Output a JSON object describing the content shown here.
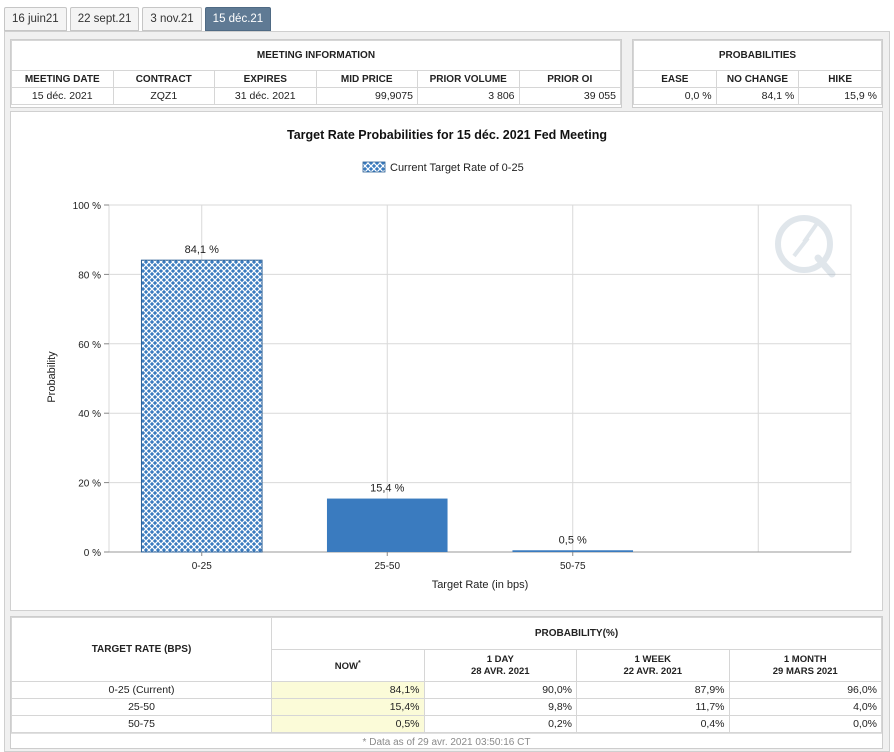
{
  "tabs": [
    "16 juin21",
    "22 sept.21",
    "3 nov.21",
    "15 déc.21"
  ],
  "active_tab": "15 déc.21",
  "meeting_info": {
    "title": "MEETING INFORMATION",
    "headers": [
      "MEETING DATE",
      "CONTRACT",
      "EXPIRES",
      "MID PRICE",
      "PRIOR VOLUME",
      "PRIOR OI"
    ],
    "values": [
      "15 déc. 2021",
      "ZQZ1",
      "31 déc. 2021",
      "99,9075",
      "3 806",
      "39 055"
    ]
  },
  "probabilities": {
    "title": "PROBABILITIES",
    "headers": [
      "EASE",
      "NO CHANGE",
      "HIKE"
    ],
    "values": [
      "0,0 %",
      "84,1 %",
      "15,9 %"
    ]
  },
  "chart_data": {
    "type": "bar",
    "title": "Target Rate Probabilities for 15 déc. 2021 Fed Meeting",
    "legend": "Current Target Rate of 0-25",
    "legend_position": "top-center",
    "xlabel": "Target Rate (in bps)",
    "ylabel": "Probability",
    "categories": [
      "0-25",
      "25-50",
      "50-75"
    ],
    "values": [
      84.1,
      15.4,
      0.5
    ],
    "value_labels": [
      "84,1 %",
      "15,4 %",
      "0,5 %"
    ],
    "ylim": [
      0,
      100
    ],
    "yticks": [
      0,
      20,
      40,
      60,
      80,
      100
    ],
    "ytick_labels": [
      "0 %",
      "20 %",
      "40 %",
      "60 %",
      "80 %",
      "100 %"
    ],
    "grid": true,
    "current_index": 0,
    "colors": {
      "bar": "#3a7bbf",
      "hatch_bg": "#ffffff",
      "grid": "#d9d9d9"
    }
  },
  "history": {
    "col_rate": "TARGET RATE (BPS)",
    "col_prob": "PROBABILITY(%)",
    "now": {
      "label": "NOW",
      "mark": "*"
    },
    "periods": [
      {
        "label": "1 DAY",
        "date": "28 AVR. 2021"
      },
      {
        "label": "1 WEEK",
        "date": "22 AVR. 2021"
      },
      {
        "label": "1 MONTH",
        "date": "29 MARS 2021"
      }
    ],
    "rows": [
      {
        "rate": "0-25 (Current)",
        "now": "84,1%",
        "d1": "90,0%",
        "w1": "87,9%",
        "m1": "96,0%"
      },
      {
        "rate": "25-50",
        "now": "15,4%",
        "d1": "9,8%",
        "w1": "11,7%",
        "m1": "4,0%"
      },
      {
        "rate": "50-75",
        "now": "0,5%",
        "d1": "0,2%",
        "w1": "0,4%",
        "m1": "0,0%"
      }
    ],
    "footnote": "* Data as of 29 avr. 2021 03:50:16 CT"
  }
}
